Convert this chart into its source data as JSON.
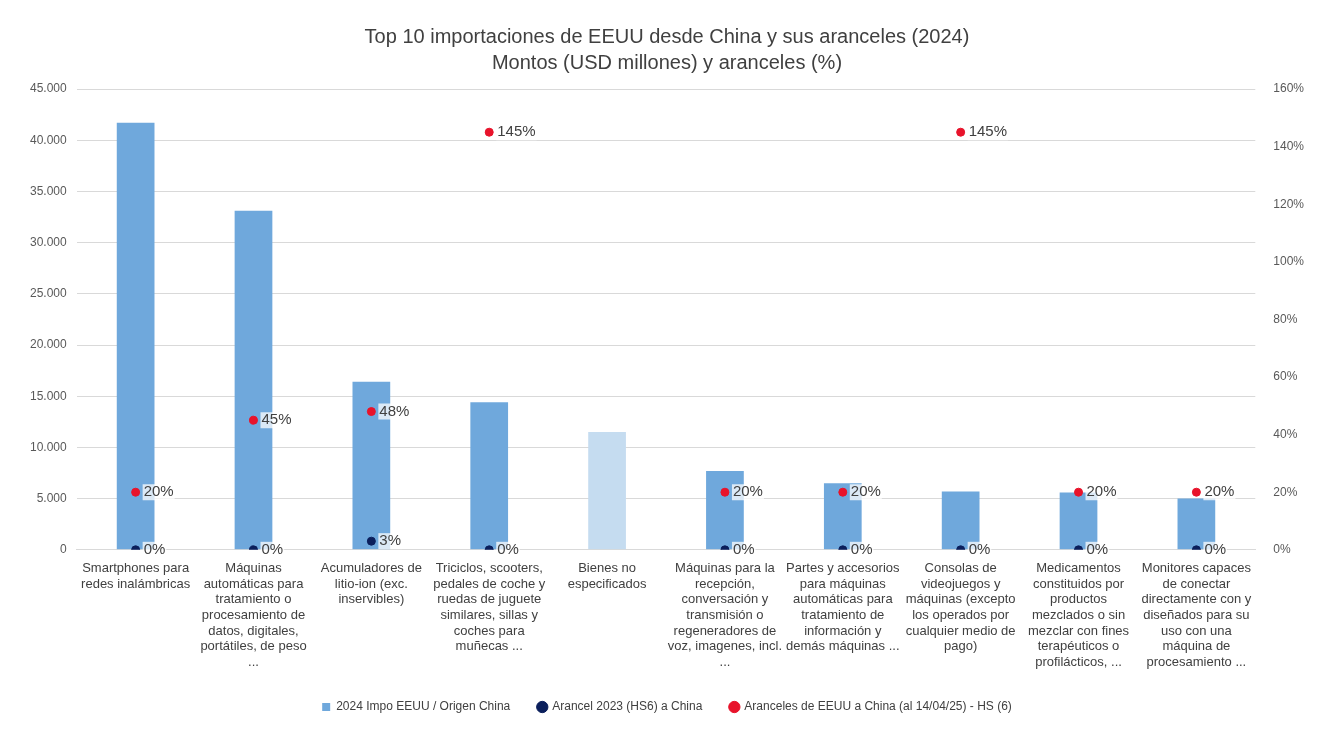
{
  "chart_data": {
    "type": "bar",
    "title": "Top 10 importaciones de EEUU desde China y sus aranceles (2024)",
    "subtitle": "Montos (USD millones) y aranceles (%)",
    "categories": [
      "Smartphones para redes inalámbricas",
      "Máquinas automáticas para tratamiento o procesamiento de datos, digitales, portátiles, de peso ...",
      "Acumuladores de litio-ion (exc. inservibles)",
      "Triciclos, scooters, pedales de coche y ruedas de juguete similares, sillas y coches para muñecas ...",
      "Bienes no especificados",
      "Máquinas para la recepción, conversación y transmisión o regeneradores de voz, imagenes, incl. ...",
      "Partes y accesorios para máquinas automáticas para tratamiento de información y demás máquinas ...",
      "Consolas de videojuegos y máquinas (excepto los operados por cualquier medio de pago)",
      "Medicamentos constituidos por productos mezclados o sin mezclar con fines terapéuticos o profilácticos, ...",
      "Monitores capaces de conectar directamente con y diseñados para su uso con una máquina de procesamiento ..."
    ],
    "series": [
      {
        "name": "2024 Impo EEUU / Origen China",
        "color": "#6fa8dc",
        "colors": [
          "#6fa8dc",
          "#6fa8dc",
          "#6fa8dc",
          "#6fa8dc",
          "#c5dcf0",
          "#6fa8dc",
          "#6fa8dc",
          "#6fa8dc",
          "#6fa8dc",
          "#6fa8dc"
        ],
        "values": [
          41700,
          33100,
          16400,
          14400,
          11500,
          7700,
          6500,
          5700,
          5600,
          5000
        ]
      },
      {
        "name": "Arancel 2023 (HS6) a China",
        "type": "scatter",
        "axis": "y2",
        "color": "#0b1f5c",
        "values": [
          0,
          0,
          3,
          0,
          null,
          0,
          0,
          0,
          0,
          0
        ],
        "value_labels": [
          "0%",
          "0%",
          "3%",
          "0%",
          null,
          "0%",
          "0%",
          "0%",
          "0%",
          "0%"
        ]
      },
      {
        "name": "Aranceles de EEUU a China (al 14/04/25) - HS (6)",
        "type": "scatter",
        "axis": "y2",
        "color": "#e8132b",
        "values": [
          20,
          45,
          48,
          145,
          null,
          20,
          20,
          145,
          20,
          20
        ],
        "value_labels": [
          "20%",
          "45%",
          "48%",
          "145%",
          null,
          "20%",
          "20%",
          "145%",
          "20%",
          "20%"
        ]
      }
    ],
    "ylim": [
      0,
      45000
    ],
    "yticks": [
      {
        "value": 0,
        "label": "0"
      },
      {
        "value": 5000,
        "label": "5.000"
      },
      {
        "value": 10000,
        "label": "10.000"
      },
      {
        "value": 15000,
        "label": "15.000"
      },
      {
        "value": 20000,
        "label": "20.000"
      },
      {
        "value": 25000,
        "label": "25.000"
      },
      {
        "value": 30000,
        "label": "30.000"
      },
      {
        "value": 35000,
        "label": "35.000"
      },
      {
        "value": 40000,
        "label": "40.000"
      },
      {
        "value": 45000,
        "label": "45.000"
      }
    ],
    "y2lim": [
      0,
      160
    ],
    "y2ticks": [
      {
        "value": 0,
        "label": "0%"
      },
      {
        "value": 20,
        "label": "20%"
      },
      {
        "value": 40,
        "label": "40%"
      },
      {
        "value": 60,
        "label": "60%"
      },
      {
        "value": 80,
        "label": "80%"
      },
      {
        "value": 100,
        "label": "100%"
      },
      {
        "value": 120,
        "label": "120%"
      },
      {
        "value": 140,
        "label": "140%"
      },
      {
        "value": 160,
        "label": "160%"
      }
    ],
    "grid": "y",
    "legend": "bottom",
    "marker": "circle"
  }
}
